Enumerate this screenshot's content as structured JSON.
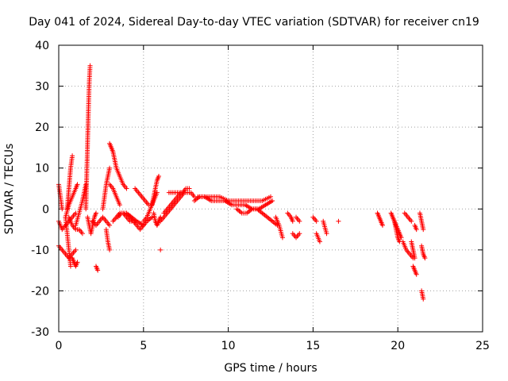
{
  "chart_data": {
    "type": "scatter",
    "title": "Day 041 of 2024, Sidereal Day-to-day VTEC variation (SDTVAR) for receiver cn19",
    "xlabel": "GPS time / hours",
    "ylabel": "SDTVAR / TECUs",
    "xlim": [
      0,
      25
    ],
    "ylim": [
      -30,
      40
    ],
    "xticks": [
      0,
      5,
      10,
      15,
      20,
      25
    ],
    "yticks": [
      -30,
      -20,
      -10,
      0,
      10,
      20,
      30,
      40
    ],
    "grid": true,
    "marker": "+",
    "series": [
      {
        "name": "SDTVAR",
        "color": "#ff0000",
        "segments": [
          {
            "x": [
              0.0,
              0.2,
              0.4,
              0.6,
              0.8,
              1.0
            ],
            "y": [
              -3,
              -5,
              -4,
              -3,
              -2,
              -1
            ]
          },
          {
            "x": [
              0.0,
              0.2,
              0.4,
              0.6,
              0.8,
              1.0
            ],
            "y": [
              -9,
              -10,
              -11,
              -12,
              -11,
              -10
            ]
          },
          {
            "x": [
              0.0,
              0.1,
              0.2
            ],
            "y": [
              6,
              3,
              0
            ]
          },
          {
            "x": [
              0.4,
              0.5,
              0.6,
              0.7
            ],
            "y": [
              -2,
              -6,
              -10,
              -14
            ]
          },
          {
            "x": [
              0.4,
              0.6,
              0.8,
              1.0,
              1.1
            ],
            "y": [
              -2,
              1,
              3,
              5,
              6
            ]
          },
          {
            "x": [
              0.5,
              0.6,
              0.7,
              0.8
            ],
            "y": [
              0,
              5,
              10,
              13
            ]
          },
          {
            "x": [
              0.6,
              0.8,
              1.0,
              1.2,
              1.4
            ],
            "y": [
              -2,
              -4,
              -5,
              -5,
              -6
            ]
          },
          {
            "x": [
              0.8,
              0.9,
              1.0,
              1.1
            ],
            "y": [
              -12,
              -13,
              -14,
              -13
            ]
          },
          {
            "x": [
              1.0,
              1.2,
              1.4,
              1.5,
              1.6
            ],
            "y": [
              -4,
              -1,
              2,
              4,
              6
            ]
          },
          {
            "x": [
              1.6,
              1.65,
              1.7,
              1.75,
              1.8,
              1.85
            ],
            "y": [
              0,
              8,
              16,
              24,
              31,
              35
            ]
          },
          {
            "x": [
              1.7,
              1.8,
              1.9,
              2.0,
              2.1,
              2.2
            ],
            "y": [
              -2,
              -4,
              -6,
              -4,
              -2,
              -1
            ]
          },
          {
            "x": [
              2.0,
              2.2,
              2.4,
              2.6,
              2.8,
              3.0
            ],
            "y": [
              -3,
              -4,
              -3,
              -2,
              -3,
              -4
            ]
          },
          {
            "x": [
              2.2,
              2.3
            ],
            "y": [
              -14,
              -15
            ]
          },
          {
            "x": [
              2.6,
              2.7,
              2.8,
              2.9,
              3.0
            ],
            "y": [
              0,
              3,
              6,
              8,
              10
            ]
          },
          {
            "x": [
              2.8,
              2.9,
              3.0
            ],
            "y": [
              -5,
              -8,
              -10
            ]
          },
          {
            "x": [
              3.0,
              3.1,
              3.2,
              3.4,
              3.6,
              3.8,
              4.0
            ],
            "y": [
              16,
              15,
              14,
              10,
              8,
              6,
              5
            ]
          },
          {
            "x": [
              3.2,
              3.4,
              3.6,
              3.8,
              4.0,
              4.2,
              4.5
            ],
            "y": [
              -3,
              -2,
              -1,
              -1,
              -2,
              -3,
              -3
            ]
          },
          {
            "x": [
              3.0,
              3.2,
              3.4,
              3.6
            ],
            "y": [
              6,
              5,
              3,
              1
            ]
          },
          {
            "x": [
              3.5,
              3.7,
              4.0,
              4.3,
              4.6,
              5.0
            ],
            "y": [
              -2,
              -1,
              -1,
              -2,
              -3,
              -4
            ]
          },
          {
            "x": [
              4.0,
              4.2,
              4.4,
              4.6,
              4.8,
              5.0,
              5.2,
              5.5
            ],
            "y": [
              -1,
              -2,
              -3,
              -4,
              -5,
              -4,
              -3,
              -2
            ]
          },
          {
            "x": [
              4.5,
              4.7,
              4.9,
              5.1,
              5.3
            ],
            "y": [
              5,
              4,
              3,
              2,
              1
            ]
          },
          {
            "x": [
              5.0,
              5.2,
              5.4,
              5.6,
              5.8
            ],
            "y": [
              -3,
              -2,
              0,
              2,
              4
            ]
          },
          {
            "x": [
              5.5,
              5.6,
              5.7,
              5.8,
              5.9
            ],
            "y": [
              1,
              3,
              5,
              7,
              8
            ]
          },
          {
            "x": [
              5.6,
              5.7,
              5.8,
              5.9,
              6.0
            ],
            "y": [
              -1,
              -3,
              -4,
              -3,
              -2
            ]
          },
          {
            "x": [
              6.0
            ],
            "y": [
              -10
            ]
          },
          {
            "x": [
              6.0,
              6.2,
              6.4,
              6.6,
              6.8,
              7.0,
              7.2,
              7.4,
              7.6,
              7.8,
              8.0
            ],
            "y": [
              -3,
              -2,
              -1,
              0,
              1,
              2,
              3,
              4,
              4,
              4,
              3
            ]
          },
          {
            "x": [
              6.2,
              6.4,
              6.6,
              6.8,
              7.0,
              7.2
            ],
            "y": [
              -1,
              0,
              1,
              2,
              3,
              4
            ]
          },
          {
            "x": [
              6.5,
              6.7,
              6.9,
              7.1,
              7.3,
              7.5,
              7.7
            ],
            "y": [
              4,
              4,
              4,
              4,
              4,
              5,
              5
            ]
          },
          {
            "x": [
              8.0,
              8.3,
              8.6,
              9.0,
              9.4,
              9.8,
              10.2,
              10.6,
              11.0,
              11.4,
              11.8,
              12.2,
              12.6
            ],
            "y": [
              2,
              3,
              3,
              2,
              2,
              2,
              1,
              1,
              1,
              0,
              0,
              1,
              2
            ]
          },
          {
            "x": [
              8.2,
              8.5,
              9.0,
              9.5,
              10.0,
              10.5,
              11.0,
              11.5,
              12.0,
              12.5
            ],
            "y": [
              3,
              3,
              3,
              3,
              2,
              2,
              2,
              2,
              2,
              3
            ]
          },
          {
            "x": [
              10.5,
              10.8,
              11.1,
              11.4,
              11.7,
              12.0,
              12.3,
              12.6,
              12.9
            ],
            "y": [
              0,
              -1,
              -1,
              0,
              0,
              -1,
              -2,
              -3,
              -4
            ]
          },
          {
            "x": [
              12.8,
              13.0,
              13.2
            ],
            "y": [
              -2,
              -4,
              -7
            ]
          },
          {
            "x": [
              13.5,
              13.7,
              13.8
            ],
            "y": [
              -1,
              -2,
              -3
            ]
          },
          {
            "x": [
              13.8,
              14.0,
              14.2
            ],
            "y": [
              -6,
              -7,
              -6
            ]
          },
          {
            "x": [
              14.0,
              14.2
            ],
            "y": [
              -2,
              -3
            ]
          },
          {
            "x": [
              15.0,
              15.2
            ],
            "y": [
              -2,
              -3
            ]
          },
          {
            "x": [
              15.2,
              15.4
            ],
            "y": [
              -6,
              -8
            ]
          },
          {
            "x": [
              15.6,
              15.8
            ],
            "y": [
              -3,
              -6
            ]
          },
          {
            "x": [
              16.5
            ],
            "y": [
              -3
            ]
          },
          {
            "x": [
              18.8,
              18.9,
              19.0,
              19.1
            ],
            "y": [
              -1,
              -2,
              -3,
              -4
            ]
          },
          {
            "x": [
              19.6,
              19.7,
              19.8,
              19.9,
              20.0,
              20.1,
              20.2
            ],
            "y": [
              -1,
              -2,
              -3,
              -4,
              -5,
              -6,
              -7
            ]
          },
          {
            "x": [
              19.8,
              19.9,
              20.0,
              20.1
            ],
            "y": [
              -3,
              -5,
              -7,
              -8
            ]
          },
          {
            "x": [
              20.3,
              20.5,
              20.7,
              20.9
            ],
            "y": [
              -8,
              -10,
              -11,
              -12
            ]
          },
          {
            "x": [
              20.4,
              20.6,
              20.8
            ],
            "y": [
              -1,
              -2,
              -3
            ]
          },
          {
            "x": [
              20.8,
              20.9,
              21.0
            ],
            "y": [
              -8,
              -10,
              -12
            ]
          },
          {
            "x": [
              20.9,
              21.0,
              21.1
            ],
            "y": [
              -14,
              -15,
              -16
            ]
          },
          {
            "x": [
              21.0,
              21.1
            ],
            "y": [
              -4,
              -5
            ]
          },
          {
            "x": [
              21.3,
              21.4,
              21.5
            ],
            "y": [
              -1,
              -3,
              -5
            ]
          },
          {
            "x": [
              21.4,
              21.5,
              21.6
            ],
            "y": [
              -9,
              -11,
              -12
            ]
          },
          {
            "x": [
              21.4,
              21.5
            ],
            "y": [
              -20,
              -22
            ]
          }
        ]
      }
    ]
  }
}
